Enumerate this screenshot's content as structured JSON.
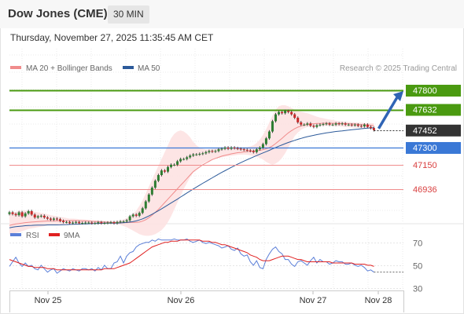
{
  "header": {
    "instrument": "Dow Jones (CME)",
    "timeframe": "30 MIN"
  },
  "datetime": "Thursday, November 27, 2025 11:35:45 AM CET",
  "legend": {
    "ma20": "MA 20 + Bollinger Bands",
    "ma50": "MA 50",
    "credit": "Research © 2025 Trading Central"
  },
  "rsi_legend": {
    "rsi": "RSI",
    "ma9": "9MA"
  },
  "colors": {
    "resistance": "#4a9a10",
    "support": "#3a78d6",
    "level_line": "#f08c8c",
    "level_text": "#d94040",
    "current": "#333333",
    "ma20": "#f08c8c",
    "ma50": "#2c5a9a",
    "band": "#fde0e0",
    "rsi": "#5b7fd8",
    "rsi_ma": "#e02020",
    "arrow": "#2f64b5"
  },
  "chart_data": [
    {
      "type": "candlestick",
      "title": "Dow Jones (CME)",
      "ylim": [
        46560,
        47930
      ],
      "x_tick_labels": [
        "Nov 25",
        "Nov 26",
        "Nov 27",
        "Nov 28"
      ],
      "levels": [
        {
          "value": 47800,
          "label": "47800",
          "style": "resistance"
        },
        {
          "value": 47632,
          "label": "47632",
          "style": "resistance"
        },
        {
          "value": 47452,
          "label": "47452",
          "style": "current"
        },
        {
          "value": 47300,
          "label": "47300",
          "style": "support"
        },
        {
          "value": 47150,
          "label": "47150",
          "style": "level"
        },
        {
          "value": 46936,
          "label": "46936",
          "style": "level"
        }
      ],
      "close": [
        46735,
        46720,
        46710,
        46735,
        46700,
        46725,
        46745,
        46715,
        46690,
        46700,
        46705,
        46690,
        46680,
        46670,
        46680,
        46675,
        46660,
        46650,
        46650,
        46640,
        46645,
        46650,
        46640,
        46642,
        46645,
        46645,
        46640,
        46640,
        46648,
        46640,
        46642,
        46645,
        46648,
        46640,
        46650,
        46655,
        46655,
        46665,
        46700,
        46715,
        46705,
        46730,
        46770,
        46830,
        46890,
        46950,
        47010,
        47060,
        47100,
        47090,
        47130,
        47150,
        47150,
        47180,
        47200,
        47200,
        47215,
        47230,
        47240,
        47240,
        47245,
        47250,
        47260,
        47270,
        47265,
        47270,
        47285,
        47290,
        47300,
        47290,
        47300,
        47295,
        47290,
        47285,
        47280,
        47275,
        47270,
        47260,
        47285,
        47300,
        47330,
        47380,
        47440,
        47530,
        47590,
        47610,
        47600,
        47620,
        47610,
        47590,
        47560,
        47520,
        47500,
        47500,
        47510,
        47490,
        47480,
        47495,
        47500,
        47505,
        47510,
        47500,
        47500,
        47510,
        47505,
        47510,
        47500,
        47500,
        47495,
        47500,
        47490,
        47485,
        47500,
        47480,
        47470,
        47452
      ],
      "ma20": [
        46620,
        46628,
        46633,
        46637,
        46641,
        46645,
        46648,
        46650,
        46652,
        46654,
        46656,
        46658,
        46659,
        46660,
        46660,
        46660,
        46661,
        46661,
        46662,
        46662,
        46663,
        46662,
        46661,
        46660,
        46660,
        46658,
        46656,
        46655,
        46653,
        46652,
        46650,
        46649,
        46648,
        46647,
        46646,
        46645,
        46645,
        46645,
        46646,
        46647,
        46648,
        46650,
        46658,
        46670,
        46688,
        46710,
        46735,
        46760,
        46790,
        46820,
        46850,
        46880,
        46910,
        46940,
        46970,
        47000,
        47030,
        47060,
        47090,
        47110,
        47130,
        47150,
        47165,
        47180,
        47195,
        47205,
        47215,
        47225,
        47232,
        47238,
        47245,
        47250,
        47255,
        47258,
        47262,
        47265,
        47268,
        47270,
        47273,
        47276,
        47281,
        47289,
        47300,
        47315,
        47335,
        47358,
        47380,
        47405,
        47428,
        47448,
        47465,
        47478,
        47488,
        47496,
        47502,
        47506,
        47508,
        47510,
        47511,
        47512,
        47512,
        47512,
        47512,
        47511,
        47510,
        47510,
        47509,
        47508,
        47507,
        47505,
        47503,
        47501,
        47500,
        47498,
        47495,
        47490
      ],
      "bollinger_upper": [
        46720,
        46730,
        46740,
        46745,
        46750,
        46750,
        46748,
        46745,
        46740,
        46735,
        46730,
        46725,
        46718,
        46710,
        46705,
        46700,
        46695,
        46690,
        46685,
        46680,
        46680,
        46678,
        46676,
        46674,
        46672,
        46670,
        46668,
        46666,
        46664,
        46662,
        46660,
        46658,
        46656,
        46655,
        46660,
        46665,
        46670,
        46685,
        46700,
        46720,
        46750,
        46790,
        46840,
        46900,
        46960,
        47020,
        47080,
        47140,
        47200,
        47260,
        47320,
        47380,
        47420,
        47440,
        47450,
        47440,
        47420,
        47390,
        47350,
        47320,
        47300,
        47290,
        47285,
        47285,
        47288,
        47290,
        47292,
        47294,
        47296,
        47298,
        47300,
        47300,
        47300,
        47300,
        47302,
        47305,
        47310,
        47320,
        47340,
        47370,
        47410,
        47460,
        47520,
        47580,
        47630,
        47660,
        47670,
        47670,
        47660,
        47645,
        47630,
        47620,
        47612,
        47606,
        47600,
        47590,
        47580,
        47570,
        47562,
        47556,
        47550,
        47545,
        47540,
        47535,
        47530,
        47528,
        47526,
        47524,
        47522,
        47520,
        47518,
        47516,
        47515,
        47514,
        47513,
        47512
      ],
      "bollinger_lower": [
        46540,
        46550,
        46555,
        46560,
        46570,
        46580,
        46590,
        46595,
        46600,
        46605,
        46610,
        46615,
        46620,
        46622,
        46624,
        46626,
        46628,
        46630,
        46632,
        46634,
        46636,
        46637,
        46638,
        46638,
        46638,
        46637,
        46636,
        46635,
        46634,
        46633,
        46632,
        46632,
        46632,
        46633,
        46632,
        46625,
        46615,
        46605,
        46590,
        46575,
        46560,
        46545,
        46535,
        46530,
        46530,
        46535,
        46545,
        46560,
        46580,
        46610,
        46650,
        46700,
        46760,
        46820,
        46880,
        46940,
        46990,
        47040,
        47080,
        47110,
        47140,
        47160,
        47175,
        47185,
        47195,
        47203,
        47210,
        47215,
        47220,
        47224,
        47228,
        47232,
        47236,
        47238,
        47238,
        47236,
        47232,
        47226,
        47220,
        47210,
        47195,
        47175,
        47160,
        47150,
        47160,
        47180,
        47210,
        47250,
        47300,
        47350,
        47400,
        47430,
        47455,
        47470,
        47480,
        47485,
        47488,
        47490,
        47490,
        47490,
        47490,
        47490,
        47488,
        47486,
        47484,
        47482,
        47480,
        47478,
        47476,
        47474,
        47472,
        47470,
        47468,
        47466,
        47464,
        47462
      ],
      "ma50": [
        46600,
        46605,
        46609,
        46612,
        46615,
        46618,
        46620,
        46621,
        46622,
        46623,
        46624,
        46624,
        46625,
        46625,
        46625,
        46625,
        46626,
        46627,
        46628,
        46629,
        46630,
        46631,
        46632,
        46633,
        46634,
        46635,
        46636,
        46637,
        46638,
        46639,
        46640,
        46640,
        46640,
        46640,
        46641,
        46642,
        46644,
        46646,
        46650,
        46654,
        46660,
        46668,
        46678,
        46690,
        46703,
        46718,
        46733,
        46749,
        46765,
        46782,
        46799,
        46816,
        46833,
        46850,
        46868,
        46886,
        46904,
        46921,
        46938,
        46955,
        46972,
        46988,
        47004,
        47020,
        47036,
        47052,
        47068,
        47083,
        47098,
        47113,
        47127,
        47141,
        47155,
        47168,
        47181,
        47194,
        47206,
        47218,
        47230,
        47242,
        47253,
        47264,
        47276,
        47288,
        47300,
        47312,
        47323,
        47334,
        47344,
        47354,
        47363,
        47372,
        47380,
        47388,
        47395,
        47401,
        47407,
        47413,
        47418,
        47423,
        47428,
        47432,
        47436,
        47440,
        47443,
        47446,
        47449,
        47452,
        47455,
        47458,
        47461,
        47464,
        47467,
        47469,
        47471,
        47473
      ]
    },
    {
      "type": "line",
      "title": "RSI",
      "ylim": [
        28,
        76
      ],
      "y_ticks": [
        70,
        50,
        30
      ],
      "series": [
        {
          "name": "RSI",
          "values": [
            49,
            53,
            57,
            52,
            49,
            52,
            49,
            50,
            47,
            46,
            50,
            47,
            44,
            46,
            47,
            43,
            45,
            47,
            46,
            45,
            47,
            46,
            45,
            47,
            47,
            46,
            47,
            45,
            48,
            46,
            50,
            47,
            47,
            52,
            53,
            58,
            52,
            58,
            61,
            62,
            66,
            68,
            69,
            70,
            70,
            72,
            71,
            73,
            72,
            72,
            72,
            72,
            73,
            72,
            72,
            72,
            73,
            71,
            70,
            71,
            72,
            70,
            69,
            70,
            69,
            68,
            67,
            65,
            66,
            67,
            64,
            63,
            65,
            60,
            58,
            59,
            53,
            50,
            54,
            48,
            47,
            55,
            60,
            64,
            66,
            62,
            60,
            55,
            55,
            51,
            49,
            53,
            54,
            52,
            50,
            54,
            57,
            52,
            55,
            53,
            53,
            51,
            52,
            54,
            53,
            53,
            51,
            51,
            52,
            50,
            49,
            50,
            48,
            45,
            46,
            44
          ]
        },
        {
          "name": "9MA",
          "values": [
            55,
            54,
            53,
            52,
            51,
            50,
            49,
            49,
            48,
            48,
            48,
            48,
            47,
            47,
            47,
            46,
            46,
            46,
            46,
            46,
            46,
            46,
            46,
            46,
            46,
            46,
            46,
            46,
            46,
            46,
            47,
            47,
            47,
            47,
            48,
            49,
            50,
            51,
            52,
            54,
            56,
            58,
            60,
            62,
            64,
            66,
            67,
            68,
            69,
            70,
            70,
            71,
            71,
            71,
            72,
            72,
            72,
            72,
            72,
            72,
            72,
            71,
            71,
            71,
            70,
            70,
            69,
            68,
            68,
            67,
            66,
            65,
            64,
            63,
            62,
            61,
            59,
            58,
            57,
            55,
            54,
            54,
            54,
            55,
            56,
            57,
            58,
            58,
            58,
            57,
            56,
            55,
            55,
            54,
            53,
            53,
            53,
            53,
            53,
            53,
            53,
            53,
            52,
            52,
            52,
            52,
            52,
            52,
            52,
            51,
            51,
            51,
            51,
            50,
            50,
            49
          ]
        }
      ]
    }
  ]
}
